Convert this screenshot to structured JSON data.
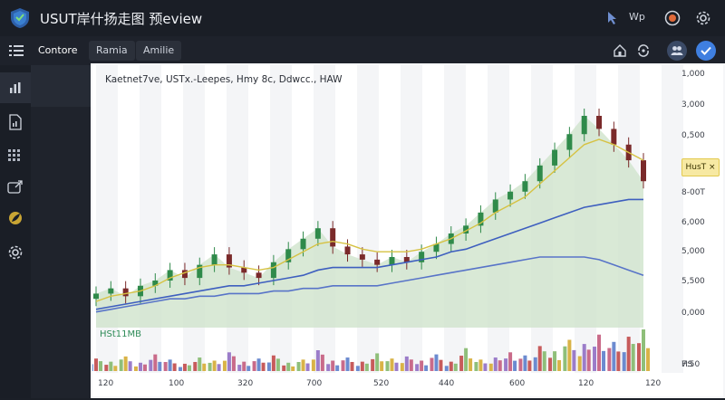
{
  "app": {
    "title": "USUT岸什扬走图 预eview"
  },
  "topbar": {
    "right_label": "Wp",
    "icons": [
      "cursor-icon",
      "alert-icon",
      "gear-icon"
    ]
  },
  "tabs": [
    {
      "label": "Contore",
      "active": true
    },
    {
      "label": "Ramia",
      "active": false
    },
    {
      "label": "Amilie",
      "active": false
    }
  ],
  "sidebar": {
    "items": [
      "chart-icon",
      "file-chart-icon",
      "grid-icon",
      "export-icon",
      "leaf-icon",
      "gear-icon"
    ]
  },
  "chart_header": {
    "legend_text": "Kaetnet7ve,  USTx.-Leepes,  Hmy 8c,  Ddwcc.,  HAW"
  },
  "volume_label": "HSt11MB",
  "price_tag": "HusT ×",
  "colors": {
    "area": "#cfe3cc",
    "up": "#2f8a4a",
    "down": "#7a2a2a",
    "ma_yellow": "#d6c243",
    "ma_blue": "#3e5fbf",
    "ma_blue2": "#5874c8"
  },
  "chart_data": {
    "type": "line",
    "x_tick_labels": [
      "120",
      "100",
      "320",
      "700",
      "520",
      "440",
      "600",
      "120",
      "120"
    ],
    "y_tick_labels": [
      "1,000",
      "3,000",
      "0,500",
      "8-00T",
      "6,000",
      "5,000",
      "5,500",
      "0,000",
      "HS",
      "7:50"
    ],
    "price_series": [
      {
        "name": "Price",
        "values": [
          5.3,
          5.5,
          5.2,
          5.6,
          5.8,
          6.2,
          5.9,
          6.4,
          6.8,
          6.3,
          6.1,
          5.9,
          6.5,
          7.0,
          7.4,
          7.8,
          7.1,
          6.8,
          6.6,
          6.4,
          6.7,
          6.5,
          6.9,
          7.2,
          7.6,
          7.9,
          8.4,
          8.9,
          9.2,
          9.6,
          10.2,
          10.8,
          11.4,
          12.1,
          11.6,
          11.0,
          10.4,
          9.6
        ]
      },
      {
        "name": "MA Yellow",
        "values": [
          5.0,
          5.2,
          5.3,
          5.4,
          5.6,
          5.9,
          6.1,
          6.3,
          6.4,
          6.4,
          6.3,
          6.2,
          6.3,
          6.6,
          6.9,
          7.2,
          7.3,
          7.2,
          7.0,
          6.9,
          6.9,
          6.9,
          7.0,
          7.2,
          7.4,
          7.7,
          8.0,
          8.4,
          8.7,
          9.0,
          9.5,
          10.0,
          10.5,
          11.0,
          11.2,
          11.0,
          10.7,
          10.4
        ]
      },
      {
        "name": "MA Blue",
        "values": [
          4.7,
          4.8,
          4.9,
          5.0,
          5.1,
          5.2,
          5.3,
          5.4,
          5.5,
          5.6,
          5.6,
          5.7,
          5.8,
          5.9,
          6.0,
          6.2,
          6.3,
          6.3,
          6.3,
          6.3,
          6.4,
          6.5,
          6.6,
          6.7,
          6.9,
          7.0,
          7.2,
          7.4,
          7.6,
          7.8,
          8.0,
          8.2,
          8.4,
          8.6,
          8.7,
          8.8,
          8.9,
          8.9
        ]
      },
      {
        "name": "MA Blue 2",
        "values": [
          4.6,
          4.7,
          4.8,
          4.9,
          5.0,
          5.1,
          5.1,
          5.2,
          5.2,
          5.3,
          5.3,
          5.3,
          5.4,
          5.4,
          5.5,
          5.5,
          5.6,
          5.6,
          5.6,
          5.6,
          5.7,
          5.8,
          5.9,
          6.0,
          6.1,
          6.2,
          6.3,
          6.4,
          6.5,
          6.6,
          6.7,
          6.7,
          6.7,
          6.7,
          6.6,
          6.4,
          6.2,
          6.0
        ]
      }
    ],
    "volume": [
      12,
      9,
      14,
      8,
      16,
      11,
      7,
      13,
      10,
      18,
      9,
      12,
      15,
      8,
      11,
      20,
      10,
      13,
      9,
      17,
      12,
      14,
      10,
      16,
      9,
      22,
      11,
      13,
      18,
      15,
      24,
      19,
      30,
      26,
      35,
      28,
      33,
      40
    ],
    "ylim": [
      4,
      13
    ]
  }
}
